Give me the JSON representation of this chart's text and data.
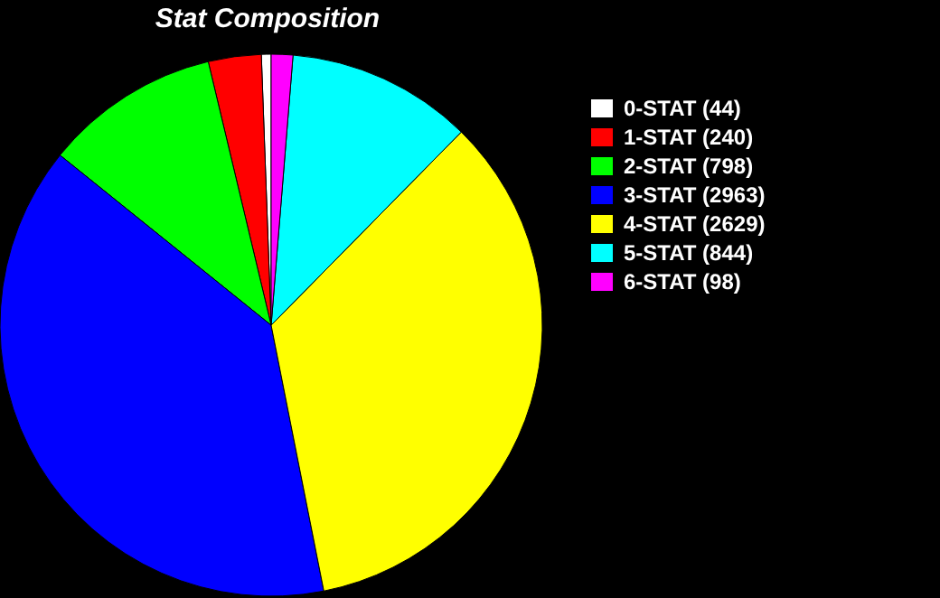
{
  "chart_data": {
    "type": "pie",
    "title": "Stat Composition",
    "categories": [
      "0-STAT (44)",
      "1-STAT (240)",
      "2-STAT (798)",
      "3-STAT (2963)",
      "4-STAT (2629)",
      "5-STAT (844)",
      "6-STAT (98)"
    ],
    "values": [
      44,
      240,
      798,
      2963,
      2629,
      844,
      98
    ],
    "colors": [
      "#ffffff",
      "#ff0000",
      "#00ff00",
      "#0000ff",
      "#ffff00",
      "#00ffff",
      "#ff00ff"
    ],
    "legend": "right"
  }
}
